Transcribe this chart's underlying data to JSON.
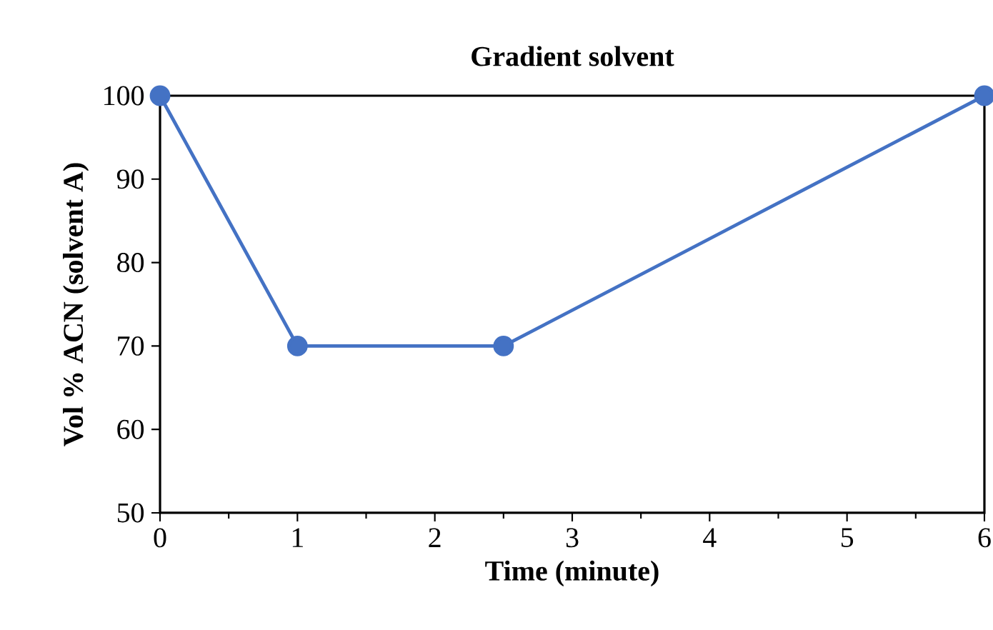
{
  "chart_data": {
    "type": "line",
    "title": "Gradient solvent",
    "xlabel": "Time (minute)",
    "ylabel": "Vol % ACN (solvent A)",
    "x": [
      0,
      1,
      2.5,
      6
    ],
    "series": [
      {
        "color": "#4472c4",
        "values": [
          100,
          70,
          70,
          100
        ]
      }
    ],
    "xlim": [
      0,
      6
    ],
    "ylim": [
      50,
      100
    ],
    "xticks": [
      0,
      1,
      2,
      3,
      4,
      5,
      6
    ],
    "yticks": [
      50,
      60,
      70,
      80,
      90,
      100
    ],
    "marker": "circle",
    "line_style": "solid",
    "grid": false
  }
}
